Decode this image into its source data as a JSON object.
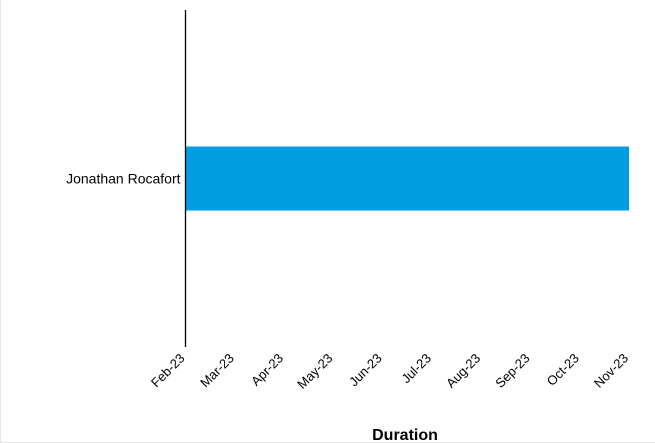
{
  "chart_data": {
    "type": "bar",
    "orientation": "horizontal",
    "subtype": "gantt",
    "title": "",
    "xlabel": "Duration",
    "ylabel": "",
    "categories": [
      "Jonathan Rocafort"
    ],
    "series": [
      {
        "color": "#009ee0",
        "bars": [
          {
            "category": "Jonathan Rocafort",
            "start": "Feb-23",
            "end": "Nov-23"
          }
        ]
      }
    ],
    "x_ticks": [
      "Feb-23",
      "Mar-23",
      "Apr-23",
      "May-23",
      "Jun-23",
      "Jul-23",
      "Aug-23",
      "Sep-23",
      "Oct-23",
      "Nov-23"
    ],
    "xlim": [
      "Feb-23",
      "Nov-23"
    ],
    "grid": false,
    "legend": "none"
  }
}
